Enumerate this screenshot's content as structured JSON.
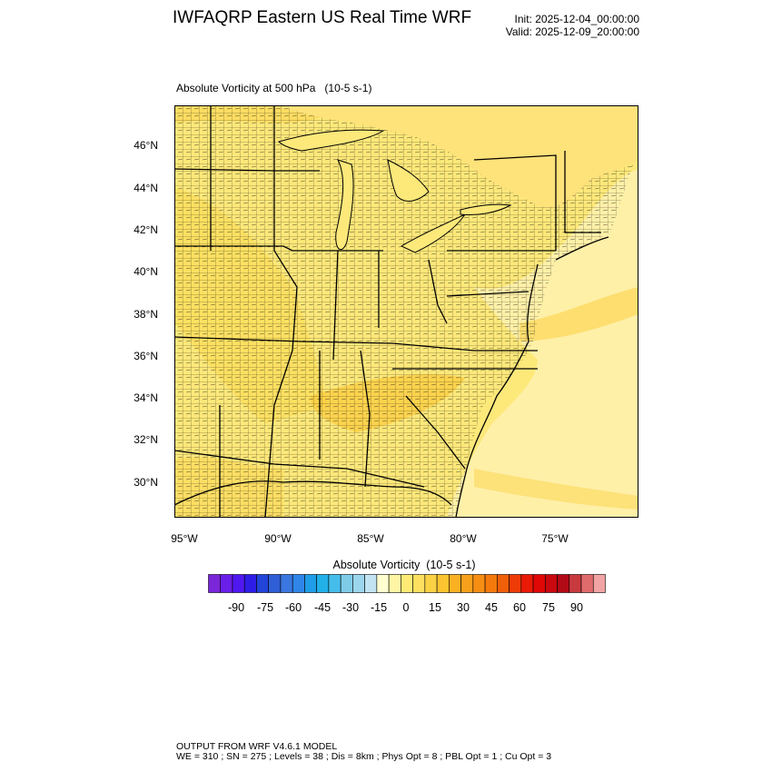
{
  "header": {
    "title": "IWFAQRP Eastern US Real Time WRF",
    "init": "Init: 2025-12-04_00:00:00",
    "valid": "Valid: 2025-12-09_20:00:00"
  },
  "field": {
    "title": "Absolute Vorticity at 500 hPa   (10-5 s-1)"
  },
  "map": {
    "lat_labels": [
      "46°N",
      "44°N",
      "42°N",
      "40°N",
      "38°N",
      "36°N",
      "34°N",
      "32°N",
      "30°N"
    ],
    "lon_labels": [
      "95°W",
      "90°W",
      "85°W",
      "80°W",
      "75°W"
    ],
    "colors": {
      "base": "#fde87a",
      "pale": "#fff0a8",
      "deep": "#fbcf45",
      "border": "#000000"
    }
  },
  "colorbar": {
    "title": "Absolute Vorticity  (10-5 s-1)",
    "labels": [
      "-90",
      "-75",
      "-60",
      "-45",
      "-30",
      "-15",
      "0",
      "15",
      "30",
      "45",
      "60",
      "75",
      "90"
    ],
    "colors": [
      "#7b26d8",
      "#6a1fe8",
      "#5018f0",
      "#2e1de6",
      "#2244d8",
      "#2f5ed6",
      "#3b77e0",
      "#2f86e8",
      "#1f9de6",
      "#21b0e8",
      "#45bdea",
      "#7ecbe8",
      "#9cd5ee",
      "#c2e4f2",
      "#ffffd0",
      "#fff5a5",
      "#feeb75",
      "#fde060",
      "#fcd245",
      "#fbc430",
      "#f9b023",
      "#f7a01b",
      "#f58e13",
      "#f47a0d",
      "#f05f0a",
      "#ee3b08",
      "#ea1a06",
      "#e00707",
      "#c9090f",
      "#b20a16",
      "#c73a3e",
      "#e06b6d",
      "#f2a3a3"
    ]
  },
  "footer": {
    "line1": "OUTPUT FROM WRF V4.6.1 MODEL",
    "line2": "WE = 310 ; SN = 275 ; Levels = 38 ; Dis = 8km ; Phys Opt = 8 ; PBL Opt = 1 ; Cu Opt = 3"
  }
}
